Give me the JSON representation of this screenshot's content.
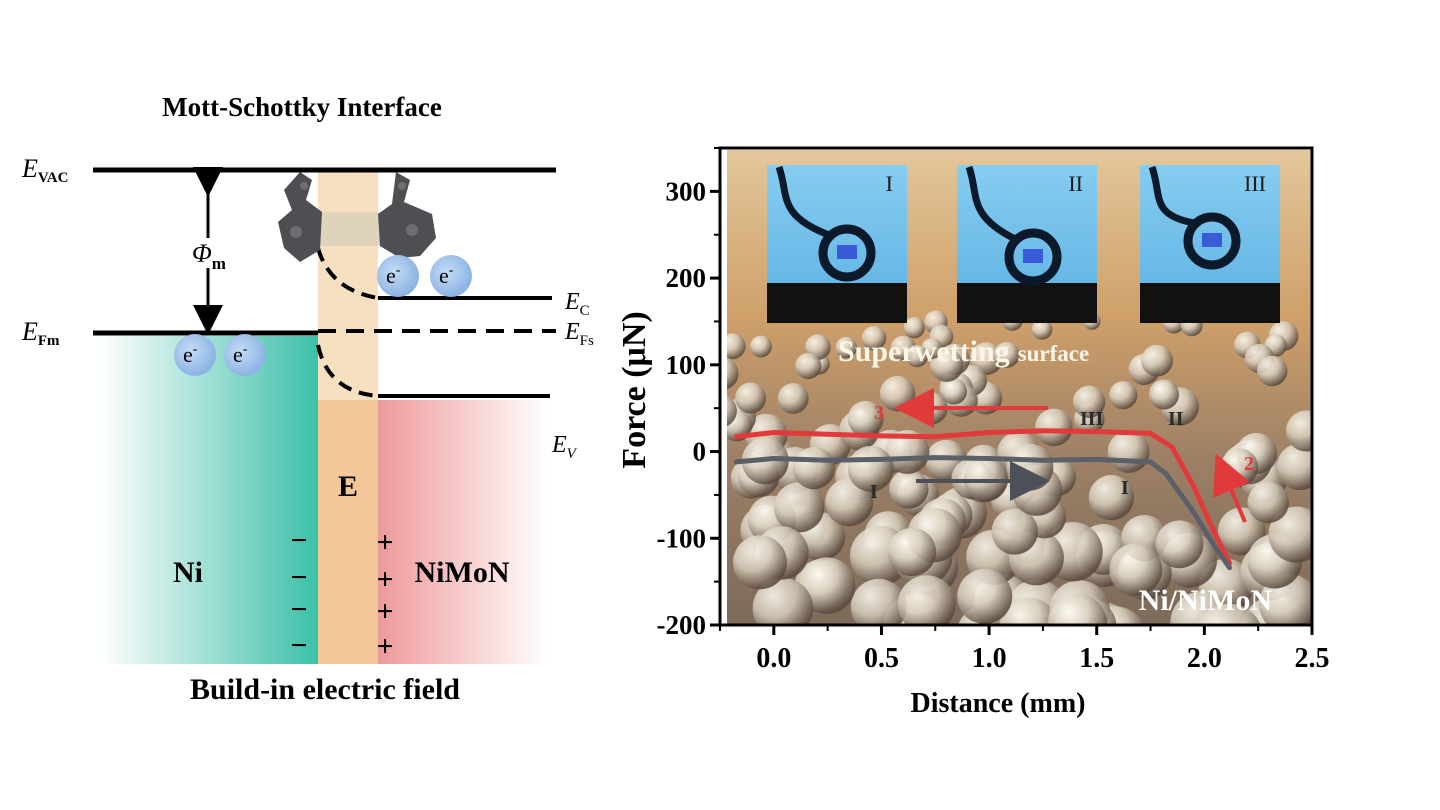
{
  "left_panel": {
    "title": "Mott-Schottky Interface",
    "bottom_caption": "Build-in electric field",
    "levels": {
      "evac": {
        "main": "E",
        "sub": "VAC"
      },
      "efm": {
        "main": "E",
        "sub": "Fm"
      },
      "phim": {
        "main": "Φ",
        "sub": "m"
      },
      "ec": {
        "main": "E",
        "sub": "C"
      },
      "efs": {
        "main": "E",
        "sub": "Fs"
      },
      "ev": {
        "main": "E",
        "sub": "V"
      }
    },
    "electron_label": "e",
    "electron_sup": "-",
    "region_ni": "Ni",
    "region_e": "E",
    "region_nimon": "NiMoN",
    "minus_sign": "−",
    "plus_sign": "+",
    "colors": {
      "ni_region": "#3cc0a8",
      "e_region": "#f3c79a",
      "nimon_region": "#ee9a9a",
      "electron": "#9cc0e8"
    }
  },
  "right_panel": {
    "insets": [
      {
        "label": "I"
      },
      {
        "label": "II"
      },
      {
        "label": "III"
      }
    ],
    "superwetting_big": "Superwetting",
    "superwetting_small": "surface",
    "sample_label": "Ni/NiMoN",
    "annotations": {
      "step1_top": "III",
      "step2_top": "II",
      "step_I_arrow": "I",
      "step_I_curve": "I",
      "step2_red": "2",
      "step3_red": "3"
    }
  },
  "chart_data": {
    "type": "line",
    "xlabel": "Distance (mm)",
    "ylabel": "Force (μN)",
    "xlim": [
      -0.25,
      2.5
    ],
    "ylim": [
      -200,
      350
    ],
    "xticks": [
      "0.0",
      "0.5",
      "1.0",
      "1.5",
      "2.0",
      "2.5"
    ],
    "yticks": [
      "300",
      "200",
      "100",
      "0",
      "-100",
      "-200"
    ],
    "series": [
      {
        "color": "#e23a3a",
        "x": [
          -0.18,
          0.0,
          0.25,
          0.5,
          0.75,
          1.0,
          1.25,
          1.5,
          1.75,
          1.85,
          1.95,
          2.05,
          2.12
        ],
        "y": [
          17,
          22,
          20,
          18,
          17,
          22,
          24,
          23,
          21,
          5,
          -40,
          -95,
          -130
        ]
      },
      {
        "color": "#5a5f68",
        "x": [
          -0.18,
          0.0,
          0.25,
          0.5,
          0.75,
          1.0,
          1.25,
          1.5,
          1.75,
          1.82,
          1.95,
          2.05,
          2.12
        ],
        "y": [
          -12,
          -8,
          -10,
          -9,
          -7,
          -8,
          -10,
          -9,
          -12,
          -25,
          -70,
          -110,
          -135
        ]
      }
    ]
  }
}
